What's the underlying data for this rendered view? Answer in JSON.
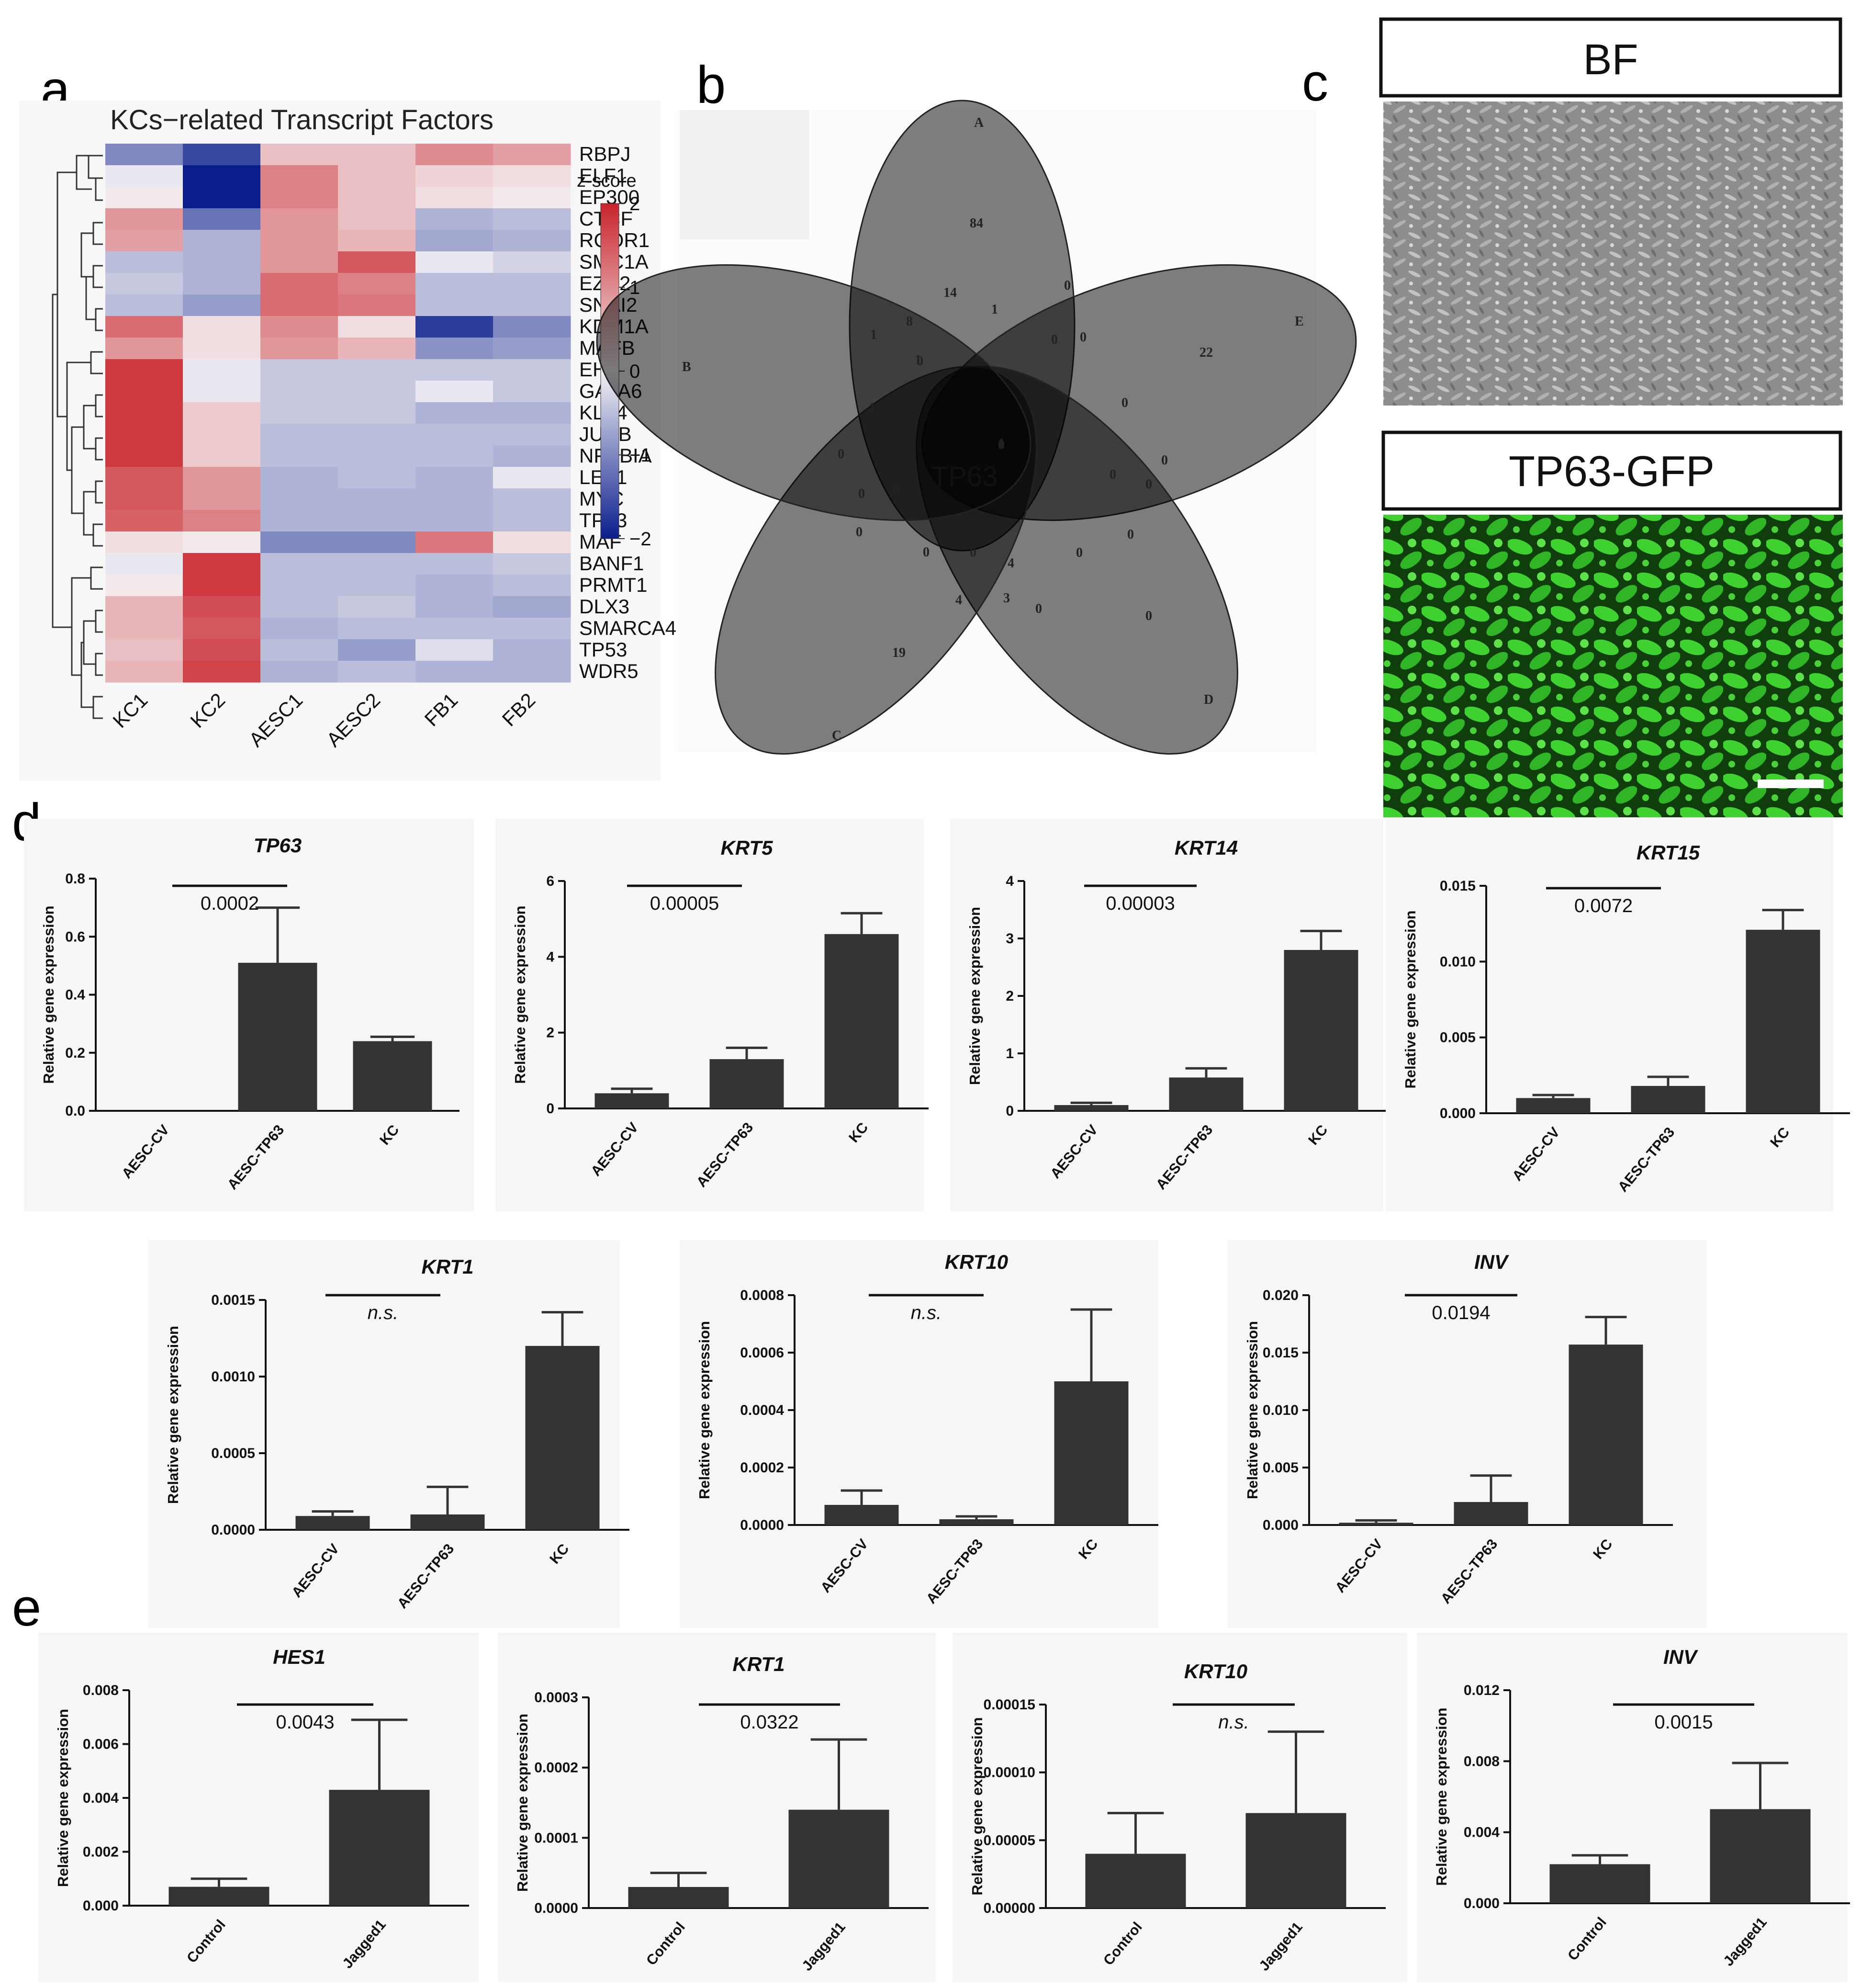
{
  "panels": {
    "a": "a",
    "b": "b",
    "c": "c",
    "d": "d",
    "e": "e"
  },
  "chart_data": [
    {
      "panel": "a",
      "type": "heatmap",
      "title": "KCs−related Transcript Factors",
      "columns": [
        "KC1",
        "KC2",
        "AESC1",
        "AESC2",
        "FB1",
        "FB2"
      ],
      "rows": [
        "RBPJ",
        "ELF1",
        "EP300",
        "CTCF",
        "RCOR1",
        "SMC1A",
        "EZH2",
        "SNAI2",
        "KDM1A",
        "MAFB",
        "EHF",
        "GATA6",
        "KLF4",
        "JUNB",
        "NFKBIA",
        "LEF1",
        "MYC",
        "TP63",
        "MAF",
        "BANF1",
        "PRMT1",
        "DLX3",
        "SMARCA4",
        "TP53",
        "WDR5"
      ],
      "values": [
        [
          -1.0,
          -1.6,
          0.5,
          0.5,
          1.0,
          0.8
        ],
        [
          -0.1,
          -2.0,
          1.1,
          0.5,
          0.3,
          0.2
        ],
        [
          0.1,
          -2.0,
          1.1,
          0.5,
          0.2,
          0.1
        ],
        [
          0.9,
          -1.2,
          0.9,
          0.5,
          -0.6,
          -0.5
        ],
        [
          0.8,
          -0.6,
          0.9,
          0.6,
          -0.7,
          -0.6
        ],
        [
          -0.5,
          -0.6,
          0.9,
          1.5,
          -0.1,
          -0.3
        ],
        [
          -0.4,
          -0.6,
          1.3,
          1.1,
          -0.5,
          -0.5
        ],
        [
          -0.5,
          -0.8,
          1.3,
          1.2,
          -0.5,
          -0.5
        ],
        [
          1.3,
          0.2,
          1.0,
          0.2,
          -1.7,
          -1.0
        ],
        [
          0.9,
          0.2,
          0.9,
          0.6,
          -0.9,
          -0.8
        ],
        [
          1.8,
          -0.1,
          -0.4,
          -0.4,
          -0.4,
          -0.4
        ],
        [
          1.8,
          -0.1,
          -0.4,
          -0.4,
          -0.1,
          -0.4
        ],
        [
          1.8,
          0.4,
          -0.4,
          -0.4,
          -0.6,
          -0.6
        ],
        [
          1.8,
          0.4,
          -0.5,
          -0.5,
          -0.5,
          -0.5
        ],
        [
          1.8,
          0.4,
          -0.5,
          -0.5,
          -0.5,
          -0.6
        ],
        [
          1.5,
          0.9,
          -0.6,
          -0.5,
          -0.6,
          -0.1
        ],
        [
          1.5,
          0.9,
          -0.6,
          -0.6,
          -0.6,
          -0.5
        ],
        [
          1.4,
          1.1,
          -0.6,
          -0.6,
          -0.6,
          -0.5
        ],
        [
          0.2,
          0.1,
          -1.0,
          -1.0,
          1.2,
          0.2
        ],
        [
          -0.1,
          1.8,
          -0.5,
          -0.5,
          -0.5,
          -0.4
        ],
        [
          0.1,
          1.8,
          -0.5,
          -0.5,
          -0.6,
          -0.5
        ],
        [
          0.6,
          1.6,
          -0.5,
          -0.4,
          -0.6,
          -0.7
        ],
        [
          0.6,
          1.5,
          -0.6,
          -0.5,
          -0.5,
          -0.5
        ],
        [
          0.5,
          1.6,
          -0.5,
          -0.8,
          -0.2,
          -0.6
        ],
        [
          0.6,
          1.7,
          -0.6,
          -0.5,
          -0.6,
          -0.6
        ]
      ],
      "legend": {
        "title": "z-score",
        "ticks": [
          "2",
          "1",
          "0",
          "−1",
          "−2"
        ],
        "range": [
          -2,
          2
        ]
      },
      "colors": {
        "low": "#0a1d8c",
        "mid": "#f5f3f5",
        "high": "#c8242b"
      }
    },
    {
      "panel": "b",
      "type": "venn",
      "sets": [
        "A",
        "B",
        "C",
        "D",
        "E"
      ],
      "set_colors": [
        "#e56a5a",
        "#5bb7d6",
        "#3eae95",
        "#5b7ab0",
        "#f2a58e"
      ],
      "region_counts": [
        "84",
        "14",
        "0",
        "8",
        "1",
        "1",
        "0",
        "1",
        "22",
        "0",
        "0",
        "1",
        "0",
        "0",
        "0",
        "0",
        "0",
        "0",
        "1",
        "0",
        "0",
        "0",
        "0",
        "4",
        "0",
        "0",
        "0",
        "4",
        "3",
        "0",
        "19",
        "0"
      ],
      "center_label": "TP63"
    },
    {
      "panel": "d",
      "type": "bar",
      "title": "TP63",
      "categories": [
        "AESC-CV",
        "AESC-TP63",
        "KC"
      ],
      "values": [
        0.0,
        0.51,
        0.24
      ],
      "errors": [
        0.0,
        0.19,
        0.015
      ],
      "ylim": [
        0,
        0.8
      ],
      "ytick_labels": [
        "0.0",
        "0.2",
        "0.4",
        "0.6",
        "0.8"
      ],
      "ylabel": "Relative gene expression",
      "pvalue": "0.0002"
    },
    {
      "panel": "d",
      "type": "bar",
      "title": "KRT5",
      "categories": [
        "AESC-CV",
        "AESC-TP63",
        "KC"
      ],
      "values": [
        0.4,
        1.3,
        4.6
      ],
      "errors": [
        0.12,
        0.3,
        0.55
      ],
      "ylim": [
        0,
        6
      ],
      "ytick_labels": [
        "0",
        "2",
        "4",
        "6"
      ],
      "ylabel": "Relative gene expression",
      "pvalue": "0.00005"
    },
    {
      "panel": "d",
      "type": "bar",
      "title": "KRT14",
      "categories": [
        "AESC-CV",
        "AESC-TP63",
        "KC"
      ],
      "values": [
        0.1,
        0.58,
        2.8
      ],
      "errors": [
        0.04,
        0.16,
        0.33
      ],
      "ylim": [
        0,
        4
      ],
      "ytick_labels": [
        "0",
        "1",
        "2",
        "3",
        "4"
      ],
      "ylabel": "Relative gene expression",
      "pvalue": "0.00003"
    },
    {
      "panel": "d",
      "type": "bar",
      "title": "KRT15",
      "categories": [
        "AESC-CV",
        "AESC-TP63",
        "KC"
      ],
      "values": [
        0.001,
        0.0018,
        0.0121
      ],
      "errors": [
        0.0002,
        0.0006,
        0.0013
      ],
      "ylim": [
        0,
        0.015
      ],
      "ytick_labels": [
        "0.000",
        "0.005",
        "0.010",
        "0.015"
      ],
      "ylabel": "Relative gene expression",
      "pvalue": "0.0072"
    },
    {
      "panel": "d",
      "type": "bar",
      "title": "KRT1",
      "categories": [
        "AESC-CV",
        "AESC-TP63",
        "KC"
      ],
      "values": [
        9e-05,
        0.0001,
        0.0012
      ],
      "errors": [
        3e-05,
        0.00018,
        0.00022
      ],
      "ylim": [
        0,
        0.0015
      ],
      "ytick_labels": [
        "0.0000",
        "0.0005",
        "0.0010",
        "0.0015"
      ],
      "ylabel": "Relative gene expression",
      "pvalue": "n.s."
    },
    {
      "panel": "d",
      "type": "bar",
      "title": "KRT10",
      "categories": [
        "AESC-CV",
        "AESC-TP63",
        "KC"
      ],
      "values": [
        7e-05,
        2e-05,
        0.0005
      ],
      "errors": [
        5e-05,
        1e-05,
        0.00025
      ],
      "ylim": [
        0,
        0.0008
      ],
      "ytick_labels": [
        "0.0000",
        "0.0002",
        "0.0004",
        "0.0006",
        "0.0008"
      ],
      "ylabel": "Relative gene expression",
      "pvalue": "n.s."
    },
    {
      "panel": "d",
      "type": "bar",
      "title": "INV",
      "categories": [
        "AESC-CV",
        "AESC-TP63",
        "KC"
      ],
      "values": [
        0.0002,
        0.002,
        0.0157
      ],
      "errors": [
        0.0002,
        0.0023,
        0.0024
      ],
      "ylim": [
        0,
        0.02
      ],
      "ytick_labels": [
        "0.000",
        "0.005",
        "0.010",
        "0.015",
        "0.020"
      ],
      "ylabel": "Relative gene expression",
      "pvalue": "0.0194"
    },
    {
      "panel": "e",
      "type": "bar",
      "title": "HES1",
      "categories": [
        "Control",
        "Jagged1"
      ],
      "values": [
        0.0007,
        0.0043
      ],
      "errors": [
        0.0003,
        0.0026
      ],
      "ylim": [
        0,
        0.008
      ],
      "ytick_labels": [
        "0.000",
        "0.002",
        "0.004",
        "0.006",
        "0.008"
      ],
      "ylabel": "Relative gene expression",
      "pvalue": "0.0043"
    },
    {
      "panel": "e",
      "type": "bar",
      "title": "KRT1",
      "categories": [
        "Control",
        "Jagged1"
      ],
      "values": [
        3e-05,
        0.00014
      ],
      "errors": [
        2e-05,
        0.0001
      ],
      "ylim": [
        0,
        0.0003
      ],
      "ytick_labels": [
        "0.0000",
        "0.0001",
        "0.0002",
        "0.0003"
      ],
      "ylabel": "Relative gene expression",
      "pvalue": "0.0322"
    },
    {
      "panel": "e",
      "type": "bar",
      "title": "KRT10",
      "categories": [
        "Control",
        "Jagged1"
      ],
      "values": [
        4e-05,
        7e-05
      ],
      "errors": [
        3e-05,
        6e-05
      ],
      "ylim": [
        0,
        0.00015
      ],
      "ytick_labels": [
        "0.00000",
        "0.00005",
        "0.00010",
        "0.00015"
      ],
      "ylabel": "Relative gene expression",
      "pvalue": "n.s."
    },
    {
      "panel": "e",
      "type": "bar",
      "title": "INV",
      "categories": [
        "Control",
        "Jagged1"
      ],
      "values": [
        0.0022,
        0.0053
      ],
      "errors": [
        0.0005,
        0.0026
      ],
      "ylim": [
        0,
        0.012
      ],
      "ytick_labels": [
        "0.000",
        "0.004",
        "0.008",
        "0.012"
      ],
      "ylabel": "Relative gene expression",
      "pvalue": "0.0015"
    }
  ],
  "images": {
    "bf_title": "BF",
    "gfp_title": "TP63-GFP",
    "bf_color": "#9a9a9a",
    "gfp_color": "#34c92a"
  }
}
